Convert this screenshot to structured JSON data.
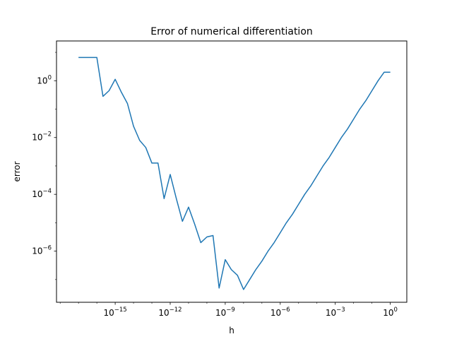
{
  "chart_data": {
    "type": "line",
    "title": "Error of numerical differentiation",
    "xlabel": "h",
    "ylabel": "error",
    "xscale": "log",
    "yscale": "log",
    "xlim_exp": [
      -18.2,
      0.9
    ],
    "ylim_exp": [
      -7.8,
      1.4
    ],
    "xticks": [
      {
        "exp": -15,
        "base": "10",
        "sup": "−15"
      },
      {
        "exp": -12,
        "base": "10",
        "sup": "−12"
      },
      {
        "exp": -9,
        "base": "10",
        "sup": "−9"
      },
      {
        "exp": -6,
        "base": "10",
        "sup": "−6"
      },
      {
        "exp": -3,
        "base": "10",
        "sup": "−3"
      },
      {
        "exp": 0,
        "base": "10",
        "sup": "0"
      }
    ],
    "yticks": [
      {
        "exp": -6,
        "base": "10",
        "sup": "−6"
      },
      {
        "exp": -4,
        "base": "10",
        "sup": "−4"
      },
      {
        "exp": -2,
        "base": "10",
        "sup": "−2"
      },
      {
        "exp": 0,
        "base": "10",
        "sup": "0"
      }
    ],
    "grid": false,
    "color": "#1f77b4",
    "series": [
      {
        "h": [
          "1e-17",
          "1e-16.6667",
          "1e-16.3333",
          "1e-16",
          "1e-15.6667",
          "1e-15.3333",
          "1e-15",
          "1e-14.6667",
          "1e-14.3333",
          "1e-14",
          "1e-13.6667",
          "1e-13.3333",
          "1e-13",
          "1e-12.6667",
          "1e-12.3333",
          "1e-12",
          "1e-11.6667",
          "1e-11.3333",
          "1e-11",
          "1e-10.6667",
          "1e-10.3333",
          "1e-10",
          "1e-9.6667",
          "1e-9.3333",
          "1e-9",
          "1e-8.6667",
          "1e-8.3333",
          "1e-8",
          "1e-7.6667",
          "1e-7.3333",
          "1e-7",
          "1e-6.6667",
          "1e-6.3333",
          "1e-6",
          "1e-5.6667",
          "1e-5.3333",
          "1e-5",
          "1e-4.6667",
          "1e-4.3333",
          "1e-4",
          "1e-3.6667",
          "1e-3.3333",
          "1e-3",
          "1e-2.6667",
          "1e-2.3333",
          "1e-2",
          "1e-1.6667",
          "1e-1.3333",
          "1e-1",
          "1e-0.6667",
          "1e-0.3333",
          "1"
        ],
        "log10_h": [
          -17,
          -16.6667,
          -16.3333,
          -16,
          -15.6667,
          -15.3333,
          -15,
          -14.6667,
          -14.3333,
          -14,
          -13.6667,
          -13.3333,
          -13,
          -12.6667,
          -12.3333,
          -12,
          -11.6667,
          -11.3333,
          -11,
          -10.6667,
          -10.3333,
          -10,
          -9.6667,
          -9.3333,
          -9,
          -8.6667,
          -8.3333,
          -8,
          -7.6667,
          -7.3333,
          -7,
          -6.6667,
          -6.3333,
          -6,
          -5.6667,
          -5.3333,
          -5,
          -4.6667,
          -4.3333,
          -4,
          -3.6667,
          -3.3333,
          -3,
          -2.6667,
          -2.3333,
          -2,
          -1.6667,
          -1.3333,
          -1,
          -0.6667,
          -0.3333,
          0
        ],
        "log10_error": [
          0.82,
          0.82,
          0.82,
          0.82,
          -0.55,
          -0.35,
          0.05,
          -0.4,
          -0.8,
          -1.6,
          -2.1,
          -2.35,
          -2.9,
          -2.9,
          -4.15,
          -3.3,
          -4.15,
          -4.95,
          -4.45,
          -5.05,
          -5.7,
          -5.5,
          -5.45,
          -7.3,
          -6.3,
          -6.65,
          -6.85,
          -7.35,
          -7.0,
          -6.65,
          -6.35,
          -6.0,
          -5.7,
          -5.35,
          -5.0,
          -4.7,
          -4.35,
          -4.0,
          -3.7,
          -3.35,
          -3.0,
          -2.7,
          -2.35,
          -2.0,
          -1.7,
          -1.35,
          -1.0,
          -0.7,
          -0.35,
          0.0,
          0.3,
          0.3
        ]
      }
    ]
  }
}
